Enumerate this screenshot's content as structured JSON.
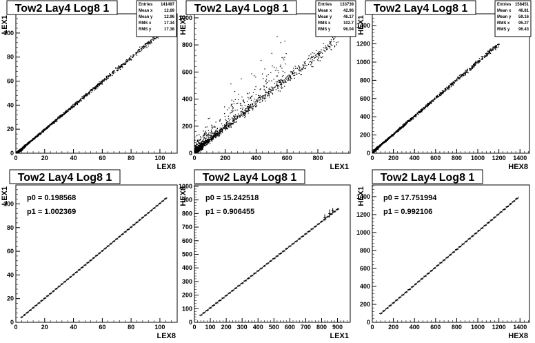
{
  "chart_data": [
    {
      "type": "scatter",
      "title": "Tow2 Lay4 Log8 1",
      "xlabel": "LEX8",
      "ylabel": "LEX1",
      "xlim": [
        0,
        112
      ],
      "ylim": [
        0,
        116
      ],
      "xticks": [
        0,
        20,
        40,
        60,
        80,
        100
      ],
      "yticks": [
        0,
        20,
        40,
        60,
        80,
        100
      ],
      "stats": [
        [
          "Entries",
          "141497"
        ],
        [
          "Mean x",
          "12.69"
        ],
        [
          "Mean y",
          "12.96"
        ],
        [
          "RMS x",
          "17.34"
        ],
        [
          "RMS y",
          "17.38"
        ]
      ],
      "fit": null,
      "trend": {
        "slope": 1.0,
        "intercept": 0.2,
        "xmax": 105,
        "spread": 0.8,
        "halo": 0
      }
    },
    {
      "type": "scatter",
      "title": "Tow2 Lay4 Log8 1",
      "xlabel": "LEX1",
      "ylabel": "HEX8",
      "xlim": [
        0,
        1010
      ],
      "ylim": [
        0,
        1030
      ],
      "xticks": [
        0,
        200,
        400,
        600,
        800
      ],
      "yticks": [
        0,
        200,
        400,
        600,
        800,
        1000
      ],
      "stats": [
        [
          "Entries",
          "133739"
        ],
        [
          "Mean x",
          "42.96"
        ],
        [
          "Mean y",
          "46.17"
        ],
        [
          "RMS x",
          "102.7"
        ],
        [
          "RMS y",
          "96.04"
        ]
      ],
      "fit": null,
      "trend": {
        "slope": 0.9,
        "intercept": 15,
        "xmax": 930,
        "spread": 20,
        "halo": 1
      }
    },
    {
      "type": "scatter",
      "title": "Tow2 Lay4 Log8 1",
      "xlabel": "HEX8",
      "ylabel": "HEX1",
      "xlim": [
        0,
        1490
      ],
      "ylim": [
        0,
        1530
      ],
      "xticks": [
        0,
        200,
        400,
        600,
        800,
        1000,
        1200,
        1400
      ],
      "yticks": [
        0,
        200,
        400,
        600,
        800,
        1000,
        1200,
        1400
      ],
      "stats": [
        [
          "Entries",
          "158451"
        ],
        [
          "Mean x",
          "46.81"
        ],
        [
          "Mean y",
          "59.16"
        ],
        [
          "RMS x",
          "95.27"
        ],
        [
          "RMS y",
          "96.43"
        ]
      ],
      "fit": null,
      "trend": {
        "slope": 0.99,
        "intercept": 18,
        "xmax": 1200,
        "spread": 10,
        "halo": 0
      }
    },
    {
      "type": "line",
      "title": "Tow2 Lay4 Log8 1",
      "xlabel": "LEX8",
      "ylabel": "LEX1",
      "xlim": [
        0,
        112
      ],
      "ylim": [
        0,
        116
      ],
      "xticks": [
        0,
        20,
        40,
        60,
        80,
        100
      ],
      "yticks": [
        0,
        20,
        40,
        60,
        80,
        100
      ],
      "stats": null,
      "fit": {
        "p0": "p0 = 0.198568",
        "p1": "p1 = 1.002369",
        "p0_value": 0.198568,
        "p1_value": 1.002369
      },
      "profile": {
        "xmin": 4,
        "xmax": 105,
        "step": 2,
        "errs": []
      }
    },
    {
      "type": "line",
      "title": "Tow2 Lay4 Log8 1",
      "xlabel": "LEX1",
      "ylabel": "HEX8",
      "xlim": [
        0,
        980
      ],
      "ylim": [
        0,
        1010
      ],
      "xticks": [
        0,
        100,
        200,
        300,
        400,
        500,
        600,
        700,
        800,
        900
      ],
      "yticks": [
        0,
        100,
        200,
        300,
        400,
        500,
        600,
        700,
        800,
        900,
        1000
      ],
      "stats": null,
      "fit": {
        "p0": "p0 = 15.242518",
        "p1": "p1 = 0.906455",
        "p0_value": 15.242518,
        "p1_value": 0.906455
      },
      "profile": {
        "xmin": 40,
        "xmax": 910,
        "step": 20,
        "errs": [
          [
            820,
            770,
            25
          ],
          [
            850,
            800,
            30
          ],
          [
            870,
            820,
            20
          ]
        ]
      }
    },
    {
      "type": "line",
      "title": "Tow2 Lay4 Log8 1",
      "xlabel": "HEX8",
      "ylabel": "HEX1",
      "xlim": [
        0,
        1490
      ],
      "ylim": [
        0,
        1530
      ],
      "xticks": [
        0,
        200,
        400,
        600,
        800,
        1000,
        1200,
        1400
      ],
      "yticks": [
        0,
        200,
        400,
        600,
        800,
        1000,
        1200,
        1400
      ],
      "stats": null,
      "fit": {
        "p0": "p0 = 17.751994",
        "p1": "p1 = 0.992106",
        "p0_value": 17.751994,
        "p1_value": 0.992106
      },
      "profile": {
        "xmin": 80,
        "xmax": 1390,
        "step": 30,
        "errs": []
      }
    }
  ]
}
